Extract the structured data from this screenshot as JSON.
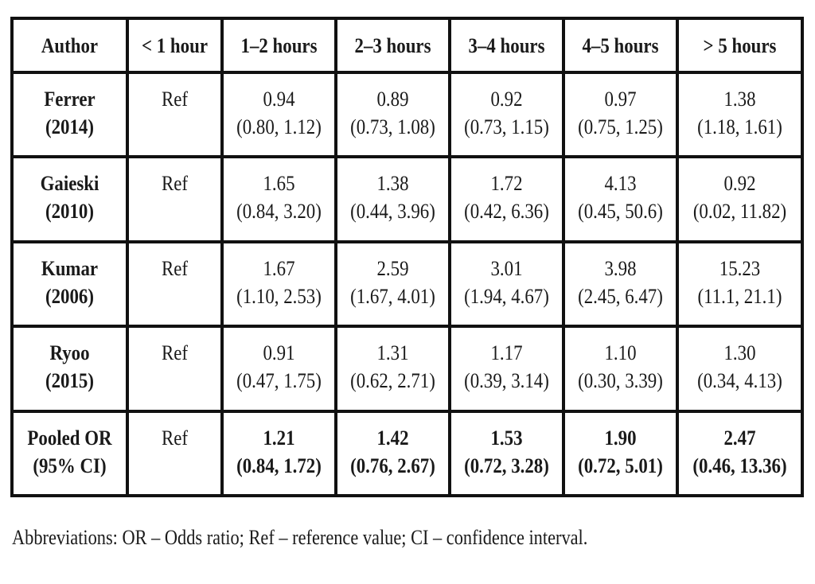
{
  "table": {
    "headers": [
      "Author",
      "< 1 hour",
      "1–2 hours",
      "2–3 hours",
      "3–4 hours",
      "4–5 hours",
      "> 5 hours"
    ],
    "rows": [
      {
        "author": [
          "Ferrer",
          "(2014)"
        ],
        "ref": "Ref",
        "values": [
          [
            "0.94",
            "(0.80, 1.12)"
          ],
          [
            "0.89",
            "(0.73, 1.08)"
          ],
          [
            "0.92",
            "(0.73, 1.15)"
          ],
          [
            "0.97",
            "(0.75, 1.25)"
          ],
          [
            "1.38",
            "(1.18, 1.61)"
          ]
        ]
      },
      {
        "author": [
          "Gaieski",
          "(2010)"
        ],
        "ref": "Ref",
        "values": [
          [
            "1.65",
            "(0.84, 3.20)"
          ],
          [
            "1.38",
            "(0.44, 3.96)"
          ],
          [
            "1.72",
            "(0.42, 6.36)"
          ],
          [
            "4.13",
            "(0.45, 50.6)"
          ],
          [
            "0.92",
            "(0.02, 11.82)"
          ]
        ]
      },
      {
        "author": [
          "Kumar",
          "(2006)"
        ],
        "ref": "Ref",
        "values": [
          [
            "1.67",
            "(1.10, 2.53)"
          ],
          [
            "2.59",
            "(1.67, 4.01)"
          ],
          [
            "3.01",
            "(1.94, 4.67)"
          ],
          [
            "3.98",
            "(2.45, 6.47)"
          ],
          [
            "15.23",
            "(11.1, 21.1)"
          ]
        ]
      },
      {
        "author": [
          "Ryoo",
          "(2015)"
        ],
        "ref": "Ref",
        "values": [
          [
            "0.91",
            "(0.47, 1.75)"
          ],
          [
            "1.31",
            "(0.62, 2.71)"
          ],
          [
            "1.17",
            "(0.39, 3.14)"
          ],
          [
            "1.10",
            "(0.30, 3.39)"
          ],
          [
            "1.30",
            "(0.34, 4.13)"
          ]
        ]
      },
      {
        "author": [
          "Pooled OR",
          "(95% CI)"
        ],
        "ref": "Ref",
        "values": [
          [
            "1.21",
            "(0.84, 1.72)"
          ],
          [
            "1.42",
            "(0.76, 2.67)"
          ],
          [
            "1.53",
            "(0.72, 3.28)"
          ],
          [
            "1.90",
            "(0.72, 5.01)"
          ],
          [
            "2.47",
            "(0.46, 13.36)"
          ]
        ]
      }
    ]
  },
  "footnote": "Abbreviations: OR – Odds ratio; Ref – reference value; CI – confidence interval."
}
